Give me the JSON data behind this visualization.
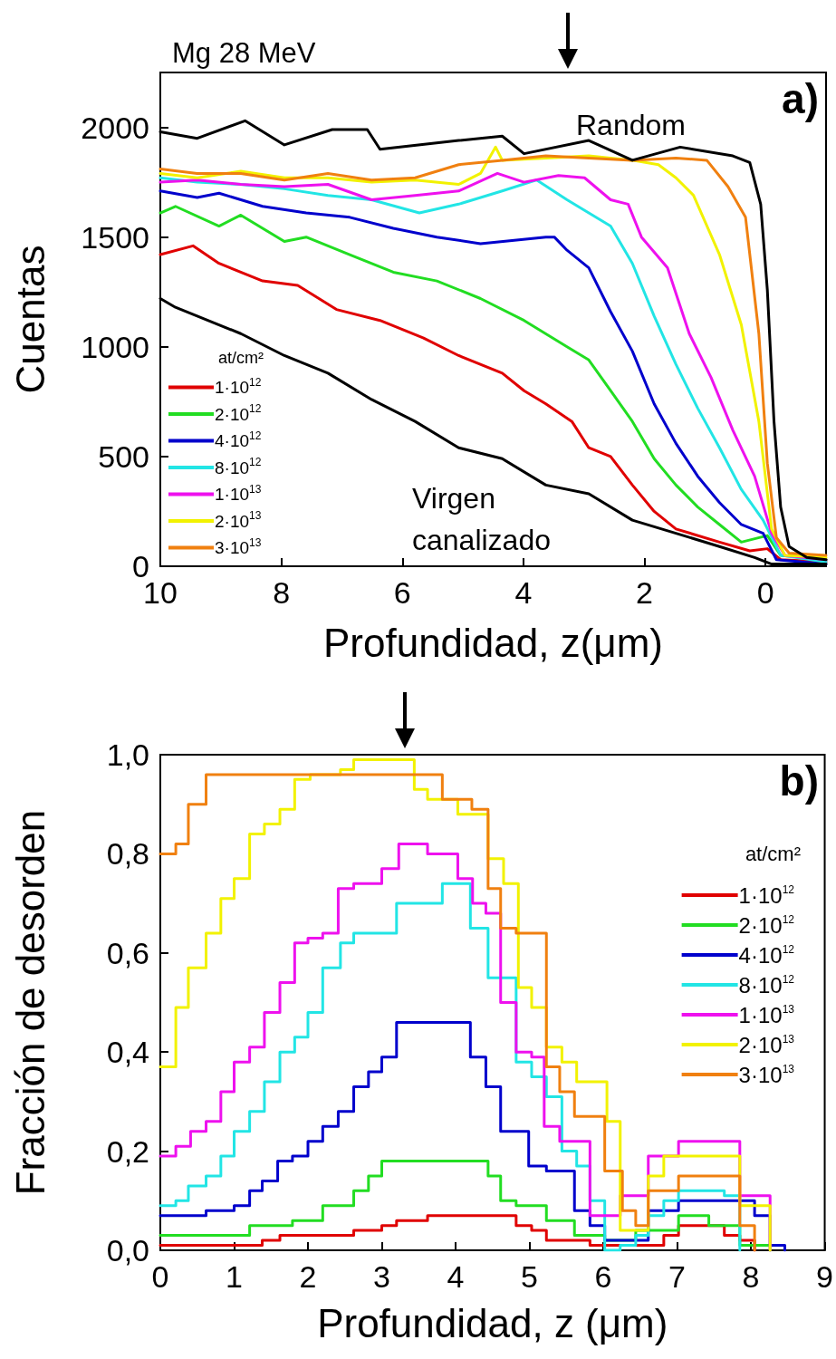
{
  "chart_data": [
    {
      "type": "line",
      "title": "Mg 28 MeV",
      "xlabel": "Profundidad, z(μm)",
      "ylabel": "Cuentas",
      "legend_title": "at/cm²",
      "legend": "bottom left",
      "marker": "none",
      "line_style": "solid",
      "xlim": [
        10,
        -1
      ],
      "xticks": [
        10,
        8,
        6,
        4,
        2,
        0
      ],
      "ylim": [
        0,
        2250
      ],
      "yticks": [
        0,
        500,
        1000,
        1500,
        2000
      ],
      "annotations": [
        "a)",
        "Random",
        "Virgen canalizado"
      ],
      "series": [
        {
          "name": "1·10$^{12}$",
          "color": "#e00000",
          "x": [
            10.0,
            9.46,
            9.03,
            8.31,
            7.73,
            7.09,
            6.37,
            5.65,
            5.07,
            4.35,
            3.99,
            3.63,
            3.2,
            2.92,
            2.56,
            2.2,
            1.84,
            1.48,
            0.76,
            0.26,
            -0.03,
            -0.25,
            -1.0
          ],
          "values": [
            1420,
            1460,
            1380,
            1300,
            1280,
            1170,
            1120,
            1040,
            960,
            880,
            800,
            740,
            660,
            540,
            500,
            370,
            250,
            170,
            110,
            70,
            80,
            30,
            20
          ]
        },
        {
          "name": "2·10$^{12}$",
          "color": "#22dd22",
          "x": [
            10.0,
            9.75,
            9.03,
            8.67,
            7.95,
            7.59,
            6.87,
            6.15,
            5.43,
            4.71,
            3.99,
            3.28,
            2.92,
            2.56,
            2.2,
            1.84,
            1.48,
            1.12,
            0.76,
            0.4,
            -0.03,
            -0.25,
            -1.0
          ],
          "values": [
            1610,
            1640,
            1550,
            1600,
            1480,
            1500,
            1420,
            1340,
            1300,
            1220,
            1120,
            1000,
            940,
            800,
            660,
            490,
            370,
            270,
            190,
            110,
            140,
            50,
            30
          ]
        },
        {
          "name": "4·10$^{12}$",
          "color": "#0000cc",
          "x": [
            10.0,
            9.39,
            9.03,
            8.31,
            7.59,
            6.87,
            6.15,
            5.43,
            4.71,
            3.63,
            3.49,
            3.28,
            2.92,
            2.56,
            2.2,
            1.84,
            1.48,
            1.12,
            0.76,
            0.4,
            0.04,
            -0.18,
            -1.0
          ],
          "values": [
            1710,
            1680,
            1700,
            1640,
            1610,
            1590,
            1540,
            1500,
            1470,
            1500,
            1500,
            1440,
            1360,
            1160,
            980,
            740,
            560,
            410,
            290,
            190,
            150,
            30,
            10
          ]
        },
        {
          "name": "8·10$^{12}$",
          "color": "#22e5e5",
          "x": [
            10.0,
            9.39,
            8.67,
            7.95,
            7.23,
            6.51,
            5.72,
            5.07,
            4.35,
            3.78,
            3.28,
            2.92,
            2.56,
            2.2,
            1.84,
            1.48,
            1.12,
            0.76,
            0.4,
            0.04,
            -0.25,
            -1.0
          ],
          "values": [
            1770,
            1750,
            1740,
            1720,
            1690,
            1670,
            1610,
            1650,
            1710,
            1760,
            1670,
            1610,
            1550,
            1380,
            1140,
            920,
            720,
            540,
            350,
            210,
            50,
            20
          ]
        },
        {
          "name": "1·10$^{13}$",
          "color": "#ee11ee",
          "x": [
            10.0,
            9.39,
            8.67,
            7.95,
            7.23,
            6.51,
            5.79,
            5.07,
            4.43,
            3.99,
            3.42,
            2.99,
            2.56,
            2.27,
            2.05,
            1.62,
            1.26,
            0.9,
            0.54,
            0.18,
            -0.1,
            -0.32,
            -1.0
          ],
          "values": [
            1750,
            1760,
            1740,
            1730,
            1740,
            1670,
            1690,
            1710,
            1790,
            1750,
            1780,
            1770,
            1670,
            1650,
            1500,
            1360,
            1060,
            860,
            620,
            410,
            150,
            50,
            30
          ]
        },
        {
          "name": "2·10$^{13}$",
          "color": "#f2f200",
          "x": [
            10.0,
            9.39,
            8.67,
            7.95,
            7.23,
            6.51,
            5.79,
            5.07,
            4.71,
            4.46,
            4.35,
            3.63,
            2.92,
            2.2,
            1.77,
            1.48,
            1.19,
            0.76,
            0.4,
            0.11,
            -0.1,
            -0.32,
            -1.0
          ],
          "values": [
            1790,
            1770,
            1800,
            1770,
            1770,
            1750,
            1760,
            1740,
            1790,
            1910,
            1850,
            1860,
            1870,
            1850,
            1830,
            1770,
            1690,
            1420,
            1100,
            660,
            170,
            50,
            40
          ]
        },
        {
          "name": "3·10$^{13}$",
          "color": "#f08010",
          "x": [
            10.0,
            9.39,
            8.67,
            7.95,
            7.23,
            6.51,
            5.79,
            5.07,
            4.35,
            3.63,
            2.92,
            2.2,
            1.48,
            0.97,
            0.62,
            0.33,
            0.11,
            -0.03,
            -0.18,
            -0.39,
            -1.0
          ],
          "values": [
            1810,
            1790,
            1790,
            1760,
            1790,
            1760,
            1770,
            1830,
            1850,
            1870,
            1860,
            1850,
            1860,
            1850,
            1730,
            1590,
            1060,
            470,
            130,
            60,
            50
          ]
        },
        {
          "color": "#000000",
          "x": [
            10.0,
            9.39,
            8.6,
            7.95,
            7.16,
            6.58,
            6.37,
            5.07,
            4.35,
            3.99,
            2.92,
            2.2,
            1.41,
            0.54,
            0.26,
            0.08,
            -0.03,
            -0.14,
            -0.25,
            -0.39,
            -0.68,
            -1.0
          ],
          "values": [
            1980,
            1950,
            2030,
            1920,
            1990,
            1990,
            1900,
            1940,
            1960,
            1880,
            1940,
            1850,
            1910,
            1870,
            1840,
            1650,
            1260,
            660,
            270,
            90,
            40,
            30
          ]
        },
        {
          "color": "#000000",
          "x": [
            10.0,
            9.75,
            9.39,
            8.67,
            7.95,
            7.23,
            6.51,
            5.79,
            5.07,
            4.35,
            3.63,
            2.92,
            2.2,
            1.48,
            0.76,
            0.18,
            -0.1,
            -1.0
          ],
          "values": [
            1220,
            1180,
            1140,
            1060,
            960,
            880,
            760,
            660,
            540,
            490,
            370,
            330,
            210,
            150,
            90,
            40,
            10,
            10
          ]
        }
      ]
    },
    {
      "type": "step",
      "xlabel": "Profundidad, z (μm)",
      "ylabel": "Fracción de desorden",
      "legend_title": "at/cm²",
      "legend": "right",
      "marker": "none",
      "line_style": "solid",
      "xlim": [
        0,
        9
      ],
      "xticks": [
        0,
        1,
        2,
        3,
        4,
        5,
        6,
        7,
        8,
        9
      ],
      "ylim": [
        0,
        1
      ],
      "yticks": [
        {
          "value": 0,
          "label": "0,0"
        },
        {
          "value": 0.2,
          "label": "0,2"
        },
        {
          "value": 0.4,
          "label": "0,4"
        },
        {
          "value": 0.6,
          "label": "0,6"
        },
        {
          "value": 0.8,
          "label": "0,8"
        },
        {
          "value": 1,
          "label": "1,0"
        }
      ],
      "annotations": [
        "b)"
      ],
      "series": [
        {
          "name": "1·10$^{12}$",
          "color": "#e00000",
          "x": [
            0,
            0.38,
            1.38,
            1.62,
            2.0,
            2.62,
            3.0,
            3.2,
            3.62,
            4.23,
            4.82,
            5.03,
            5.23,
            5.82,
            6.64,
            6.82,
            7.02,
            7.64,
            7.85,
            8.05
          ],
          "values": [
            0.01,
            0.01,
            0.02,
            0.03,
            0.03,
            0.04,
            0.05,
            0.06,
            0.07,
            0.07,
            0.05,
            0.04,
            0.02,
            0.01,
            0.01,
            0.03,
            0.05,
            0.03,
            0.02,
            0
          ]
        },
        {
          "name": "2·10$^{12}$",
          "color": "#22dd22",
          "x": [
            0,
            1.0,
            1.21,
            1.79,
            2.2,
            2.62,
            2.82,
            3.0,
            4.44,
            4.61,
            4.82,
            5.23,
            5.61,
            6.02,
            6.44,
            7.02,
            7.43,
            7.85,
            8.26
          ],
          "values": [
            0.03,
            0.03,
            0.05,
            0.06,
            0.09,
            0.12,
            0.15,
            0.18,
            0.15,
            0.1,
            0.09,
            0.06,
            0.03,
            0.02,
            0.04,
            0.07,
            0.05,
            0.01,
            0
          ]
        },
        {
          "name": "4·10$^{12}$",
          "color": "#0000cc",
          "x": [
            0,
            0.21,
            0.62,
            1.0,
            1.21,
            1.38,
            1.59,
            1.79,
            2.0,
            2.2,
            2.41,
            2.62,
            2.82,
            3.0,
            3.2,
            4.2,
            4.41,
            4.61,
            4.99,
            5.23,
            5.61,
            5.82,
            6.02,
            6.44,
            6.61,
            7.02,
            8.05,
            8.26,
            8.46
          ],
          "values": [
            0.07,
            0.07,
            0.08,
            0.09,
            0.12,
            0.14,
            0.18,
            0.19,
            0.22,
            0.25,
            0.28,
            0.33,
            0.36,
            0.39,
            0.46,
            0.39,
            0.33,
            0.24,
            0.17,
            0.16,
            0.08,
            0.05,
            0.02,
            0.02,
            0.08,
            0.1,
            0.07,
            0.01,
            0
          ]
        },
        {
          "name": "8·10$^{12}$",
          "color": "#22e5e5",
          "x": [
            0,
            0.21,
            0.38,
            0.62,
            0.82,
            1.0,
            1.21,
            1.41,
            1.62,
            1.82,
            2.0,
            2.2,
            2.44,
            2.62,
            3.2,
            3.82,
            4.2,
            4.44,
            4.82,
            5.03,
            5.23,
            5.44,
            5.64,
            5.82,
            6.02,
            6.23,
            6.44,
            6.61,
            6.82,
            7.02,
            7.64,
            7.85
          ],
          "values": [
            0.09,
            0.1,
            0.13,
            0.15,
            0.19,
            0.24,
            0.28,
            0.34,
            0.4,
            0.43,
            0.48,
            0.57,
            0.62,
            0.64,
            0.7,
            0.74,
            0.65,
            0.55,
            0.38,
            0.35,
            0.31,
            0.2,
            0.17,
            0.1,
            0,
            0.01,
            0.03,
            0.07,
            0.1,
            0.12,
            0.11,
            0
          ]
        },
        {
          "name": "1·10$^{13}$",
          "color": "#ee11ee",
          "x": [
            0,
            0.21,
            0.41,
            0.62,
            0.82,
            1.0,
            1.21,
            1.41,
            1.62,
            1.82,
            2.0,
            2.2,
            2.41,
            2.62,
            3.0,
            3.23,
            3.62,
            4.03,
            4.23,
            4.41,
            4.61,
            4.82,
            5.03,
            5.2,
            5.41,
            5.82,
            6.23,
            6.61,
            7.02,
            7.85,
            8.26
          ],
          "values": [
            0.19,
            0.21,
            0.24,
            0.26,
            0.32,
            0.38,
            0.41,
            0.48,
            0.54,
            0.62,
            0.63,
            0.64,
            0.73,
            0.74,
            0.77,
            0.82,
            0.8,
            0.75,
            0.7,
            0.68,
            0.5,
            0.4,
            0.39,
            0.25,
            0.22,
            0.07,
            0.11,
            0.19,
            0.22,
            0.11,
            0
          ]
        },
        {
          "name": "2·10$^{13}$",
          "color": "#f2f200",
          "x": [
            0,
            0.21,
            0.38,
            0.62,
            0.82,
            1.0,
            1.21,
            1.41,
            1.62,
            1.82,
            2.03,
            2.44,
            2.62,
            3.44,
            3.62,
            4.03,
            4.44,
            4.65,
            4.85,
            5.03,
            5.23,
            5.44,
            5.64,
            6.05,
            6.23,
            6.61,
            6.82,
            7.85,
            8.26
          ],
          "values": [
            0.37,
            0.49,
            0.57,
            0.64,
            0.71,
            0.75,
            0.84,
            0.86,
            0.89,
            0.95,
            0.96,
            0.97,
            0.99,
            0.93,
            0.91,
            0.88,
            0.79,
            0.74,
            0.53,
            0.49,
            0.41,
            0.38,
            0.34,
            0.26,
            0.04,
            0.15,
            0.19,
            0.09,
            0
          ]
        },
        {
          "name": "3·10$^{13}$",
          "color": "#f08010",
          "x": [
            0,
            0.21,
            0.38,
            0.62,
            3.82,
            4.22,
            4.44,
            4.61,
            4.82,
            5.23,
            5.41,
            5.61,
            6.02,
            6.26,
            6.44,
            6.61,
            7.02,
            7.85,
            8.05
          ],
          "values": [
            0.8,
            0.82,
            0.9,
            0.96,
            0.91,
            0.89,
            0.73,
            0.65,
            0.64,
            0.37,
            0.32,
            0.27,
            0.16,
            0.08,
            0.05,
            0.12,
            0.15,
            0.05,
            0
          ]
        }
      ]
    }
  ]
}
